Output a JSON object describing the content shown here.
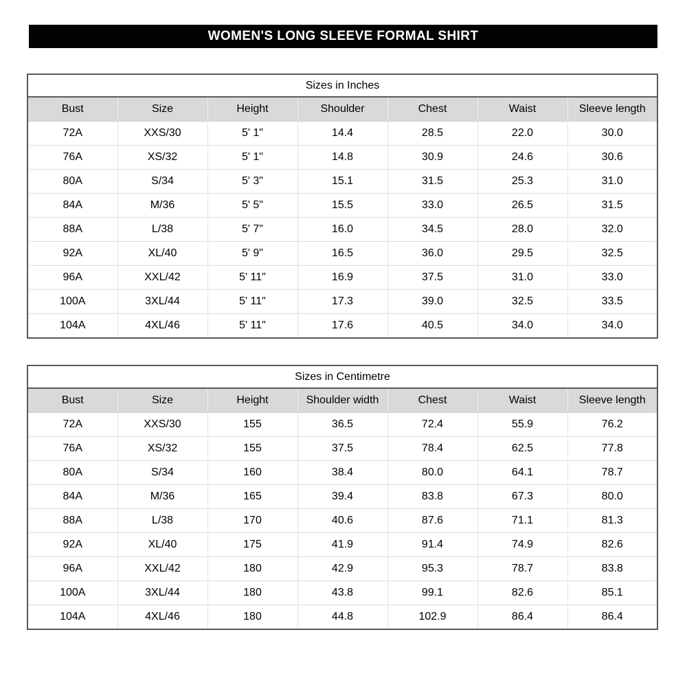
{
  "banner": {
    "title": "WOMEN'S LONG SLEEVE FORMAL SHIRT"
  },
  "colors": {
    "banner_bg": "#030303",
    "banner_text": "#ffffff",
    "header_row_bg": "#d9d9d9",
    "outer_border": "#595959",
    "inner_gridline": "#dedede",
    "page_bg": "#ffffff",
    "text": "#000000"
  },
  "tables": [
    {
      "title": "Sizes in Inches",
      "columns": [
        "Bust",
        "Size",
        "Height",
        "Shoulder",
        "Chest",
        "Waist",
        "Sleeve length"
      ],
      "rows": [
        [
          "72A",
          "XXS/30",
          "5' 1\"",
          "14.4",
          "28.5",
          "22.0",
          "30.0"
        ],
        [
          "76A",
          "XS/32",
          "5' 1\"",
          "14.8",
          "30.9",
          "24.6",
          "30.6"
        ],
        [
          "80A",
          "S/34",
          "5' 3\"",
          "15.1",
          "31.5",
          "25.3",
          "31.0"
        ],
        [
          "84A",
          "M/36",
          "5' 5\"",
          "15.5",
          "33.0",
          "26.5",
          "31.5"
        ],
        [
          "88A",
          "L/38",
          "5' 7\"",
          "16.0",
          "34.5",
          "28.0",
          "32.0"
        ],
        [
          "92A",
          "XL/40",
          "5' 9\"",
          "16.5",
          "36.0",
          "29.5",
          "32.5"
        ],
        [
          "96A",
          "XXL/42",
          "5' 11\"",
          "16.9",
          "37.5",
          "31.0",
          "33.0"
        ],
        [
          "100A",
          "3XL/44",
          "5' 11\"",
          "17.3",
          "39.0",
          "32.5",
          "33.5"
        ],
        [
          "104A",
          "4XL/46",
          "5' 11\"",
          "17.6",
          "40.5",
          "34.0",
          "34.0"
        ]
      ]
    },
    {
      "title": "Sizes in Centimetre",
      "columns": [
        "Bust",
        "Size",
        "Height",
        "Shoulder width",
        "Chest",
        "Waist",
        "Sleeve length"
      ],
      "rows": [
        [
          "72A",
          "XXS/30",
          "155",
          "36.5",
          "72.4",
          "55.9",
          "76.2"
        ],
        [
          "76A",
          "XS/32",
          "155",
          "37.5",
          "78.4",
          "62.5",
          "77.8"
        ],
        [
          "80A",
          "S/34",
          "160",
          "38.4",
          "80.0",
          "64.1",
          "78.7"
        ],
        [
          "84A",
          "M/36",
          "165",
          "39.4",
          "83.8",
          "67.3",
          "80.0"
        ],
        [
          "88A",
          "L/38",
          "170",
          "40.6",
          "87.6",
          "71.1",
          "81.3"
        ],
        [
          "92A",
          "XL/40",
          "175",
          "41.9",
          "91.4",
          "74.9",
          "82.6"
        ],
        [
          "96A",
          "XXL/42",
          "180",
          "42.9",
          "95.3",
          "78.7",
          "83.8"
        ],
        [
          "100A",
          "3XL/44",
          "180",
          "43.8",
          "99.1",
          "82.6",
          "85.1"
        ],
        [
          "104A",
          "4XL/46",
          "180",
          "44.8",
          "102.9",
          "86.4",
          "86.4"
        ]
      ]
    }
  ]
}
